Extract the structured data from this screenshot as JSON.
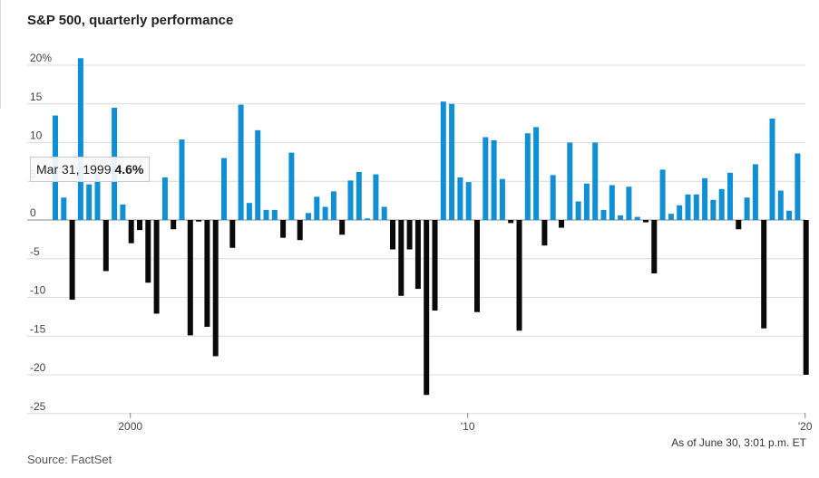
{
  "chart_data": {
    "type": "bar",
    "title": "S&P 500, quarterly performance",
    "xlabel": "",
    "ylabel": "",
    "ylim": [
      -25,
      20
    ],
    "y_ticks": [
      {
        "value": 20,
        "label": "20%"
      },
      {
        "value": 15,
        "label": "15"
      },
      {
        "value": 10,
        "label": "10"
      },
      {
        "value": 5,
        "label": "5"
      },
      {
        "value": 0,
        "label": "0"
      },
      {
        "value": -5,
        "label": "-5"
      },
      {
        "value": -10,
        "label": "-10"
      },
      {
        "value": -15,
        "label": "-15"
      },
      {
        "value": -20,
        "label": "-20"
      },
      {
        "value": -25,
        "label": "-25"
      }
    ],
    "x_ticks": [
      {
        "quarter_index": 9,
        "label": "2000"
      },
      {
        "quarter_index": 49,
        "label": "'10"
      },
      {
        "quarter_index": 89,
        "label": "'20"
      }
    ],
    "values": [
      13.5,
      2.9,
      -10.3,
      20.9,
      4.6,
      6.7,
      -6.6,
      14.5,
      2.0,
      -3.0,
      -1.3,
      -8.1,
      -12.1,
      5.5,
      -1.2,
      10.4,
      -14.9,
      -0.2,
      -13.8,
      -17.6,
      8.0,
      -3.6,
      14.9,
      2.2,
      11.6,
      1.3,
      1.3,
      -2.3,
      8.7,
      -2.6,
      0.9,
      3.0,
      1.7,
      3.7,
      -1.9,
      5.1,
      6.2,
      0.2,
      5.9,
      1.7,
      -3.8,
      -9.8,
      -3.8,
      -8.9,
      -22.6,
      -11.7,
      15.3,
      15.0,
      5.5,
      4.9,
      -11.9,
      10.7,
      10.3,
      5.3,
      -0.4,
      -14.3,
      11.2,
      12.0,
      -3.3,
      5.8,
      -1.0,
      10.0,
      2.4,
      4.7,
      10.0,
      1.3,
      4.5,
      0.6,
      4.3,
      0.4,
      -0.3,
      -6.9,
      6.5,
      0.8,
      1.9,
      3.3,
      3.3,
      5.4,
      2.6,
      4.0,
      6.1,
      -1.2,
      2.9,
      7.2,
      -14.0,
      13.1,
      3.8,
      1.2,
      8.6,
      -20.0
    ],
    "bar_colors": {
      "positive": "#0e8fd6",
      "negative": "#0a0a0a"
    },
    "grid": true,
    "legend": "none"
  },
  "tooltip": {
    "date": "Mar 31, 1999",
    "value": "4.6%"
  },
  "footer": {
    "note": "As of June 30, 3:01 p.m. ET",
    "source": "Source: FactSet"
  }
}
